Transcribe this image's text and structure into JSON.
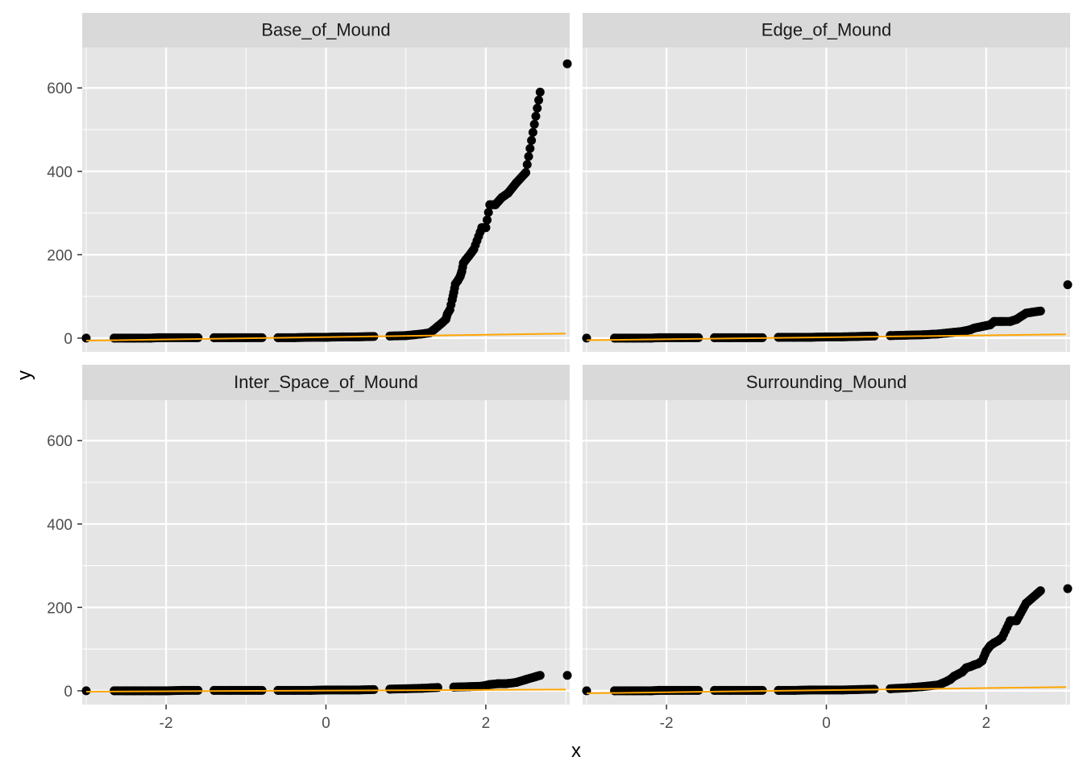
{
  "chart_data": {
    "type": "scatter",
    "xlabel": "x",
    "ylabel": "y",
    "xlim": [
      -3.05,
      3.05
    ],
    "ylim": [
      -33,
      697
    ],
    "x_ticks": [
      -2,
      0,
      2
    ],
    "y_ticks": [
      0,
      200,
      400,
      600
    ],
    "grid": true,
    "colors": {
      "panel_bg": "#e5e5e5",
      "strip_bg": "#d9d9d9",
      "grid": "#ffffff",
      "points": "#000000",
      "line": "#ffa500"
    },
    "panels": [
      {
        "title": "Base_of_Mound",
        "line": [
          [
            -3.0,
            -6
          ],
          [
            3.0,
            11
          ]
        ],
        "points": [
          [
            -3.0,
            0
          ],
          [
            -2.65,
            0
          ],
          [
            -2.5,
            0
          ],
          [
            -2.4,
            0
          ],
          [
            -2.3,
            0
          ],
          [
            -2.2,
            0
          ],
          [
            -2.1,
            1
          ],
          [
            -2.0,
            1
          ],
          [
            -1.8,
            1
          ],
          [
            -1.6,
            1
          ],
          [
            -1.4,
            1
          ],
          [
            -1.2,
            1
          ],
          [
            -1.0,
            1
          ],
          [
            -0.8,
            1
          ],
          [
            -0.6,
            1
          ],
          [
            -0.4,
            1
          ],
          [
            -0.2,
            2
          ],
          [
            0.0,
            2
          ],
          [
            0.2,
            3
          ],
          [
            0.4,
            3
          ],
          [
            0.6,
            4
          ],
          [
            0.8,
            5
          ],
          [
            1.0,
            6
          ],
          [
            1.1,
            8
          ],
          [
            1.2,
            10
          ],
          [
            1.3,
            13
          ],
          [
            1.35,
            20
          ],
          [
            1.4,
            28
          ],
          [
            1.45,
            36
          ],
          [
            1.5,
            45
          ],
          [
            1.52,
            58
          ],
          [
            1.55,
            68
          ],
          [
            1.58,
            92
          ],
          [
            1.6,
            110
          ],
          [
            1.62,
            130
          ],
          [
            1.65,
            138
          ],
          [
            1.68,
            148
          ],
          [
            1.7,
            160
          ],
          [
            1.72,
            180
          ],
          [
            1.75,
            188
          ],
          [
            1.78,
            195
          ],
          [
            1.82,
            205
          ],
          [
            1.85,
            213
          ],
          [
            1.95,
            265
          ],
          [
            2.0,
            265
          ],
          [
            2.05,
            320
          ],
          [
            2.12,
            320
          ],
          [
            2.2,
            337
          ],
          [
            2.28,
            348
          ],
          [
            2.38,
            372
          ],
          [
            2.5,
            397
          ],
          [
            2.68,
            590
          ],
          [
            3.02,
            658
          ]
        ]
      },
      {
        "title": "Edge_of_Mound",
        "line": [
          [
            -3.0,
            -5
          ],
          [
            3.0,
            9
          ]
        ],
        "points": [
          [
            -3.0,
            0
          ],
          [
            -2.65,
            0
          ],
          [
            -2.5,
            0
          ],
          [
            -2.4,
            0
          ],
          [
            -2.3,
            0
          ],
          [
            -2.2,
            0
          ],
          [
            -2.1,
            1
          ],
          [
            -2.0,
            1
          ],
          [
            -1.8,
            1
          ],
          [
            -1.6,
            1
          ],
          [
            -1.4,
            1
          ],
          [
            -1.2,
            1
          ],
          [
            -1.0,
            1
          ],
          [
            -0.8,
            1
          ],
          [
            -0.6,
            2
          ],
          [
            -0.4,
            2
          ],
          [
            -0.2,
            2
          ],
          [
            0.0,
            3
          ],
          [
            0.2,
            3
          ],
          [
            0.4,
            4
          ],
          [
            0.6,
            5
          ],
          [
            0.8,
            6
          ],
          [
            1.0,
            7
          ],
          [
            1.2,
            8
          ],
          [
            1.4,
            10
          ],
          [
            1.5,
            12
          ],
          [
            1.6,
            14
          ],
          [
            1.7,
            16
          ],
          [
            1.8,
            20
          ],
          [
            1.85,
            24
          ],
          [
            1.9,
            26
          ],
          [
            1.95,
            28
          ],
          [
            2.0,
            30
          ],
          [
            2.05,
            32
          ],
          [
            2.1,
            40
          ],
          [
            2.2,
            40
          ],
          [
            2.3,
            40
          ],
          [
            2.38,
            45
          ],
          [
            2.5,
            60
          ],
          [
            2.68,
            65
          ],
          [
            3.02,
            128
          ]
        ]
      },
      {
        "title": "Inter_Space_of_Mound",
        "line": [
          [
            -3.0,
            -2
          ],
          [
            3.0,
            3
          ]
        ],
        "points": [
          [
            -3.0,
            0
          ],
          [
            -2.65,
            0
          ],
          [
            -2.5,
            0
          ],
          [
            -2.4,
            0
          ],
          [
            -2.3,
            0
          ],
          [
            -2.2,
            0
          ],
          [
            -2.1,
            0
          ],
          [
            -2.0,
            0
          ],
          [
            -1.8,
            1
          ],
          [
            -1.6,
            1
          ],
          [
            -1.4,
            1
          ],
          [
            -1.2,
            1
          ],
          [
            -1.0,
            1
          ],
          [
            -0.8,
            1
          ],
          [
            -0.6,
            1
          ],
          [
            -0.4,
            1
          ],
          [
            -0.2,
            1
          ],
          [
            0.0,
            2
          ],
          [
            0.2,
            2
          ],
          [
            0.4,
            2
          ],
          [
            0.6,
            3
          ],
          [
            0.8,
            4
          ],
          [
            1.0,
            5
          ],
          [
            1.2,
            6
          ],
          [
            1.4,
            8
          ],
          [
            1.6,
            9
          ],
          [
            1.8,
            10
          ],
          [
            1.95,
            11
          ],
          [
            2.05,
            15
          ],
          [
            2.15,
            17
          ],
          [
            2.25,
            17
          ],
          [
            2.38,
            20
          ],
          [
            2.5,
            27
          ],
          [
            2.68,
            37
          ],
          [
            3.02,
            37
          ]
        ]
      },
      {
        "title": "Surrounding_Mound",
        "line": [
          [
            -3.0,
            -6
          ],
          [
            3.0,
            9
          ]
        ],
        "points": [
          [
            -3.0,
            0
          ],
          [
            -2.65,
            0
          ],
          [
            -2.5,
            0
          ],
          [
            -2.4,
            0
          ],
          [
            -2.3,
            0
          ],
          [
            -2.2,
            0
          ],
          [
            -2.1,
            1
          ],
          [
            -2.0,
            1
          ],
          [
            -1.8,
            1
          ],
          [
            -1.6,
            1
          ],
          [
            -1.4,
            1
          ],
          [
            -1.2,
            1
          ],
          [
            -1.0,
            1
          ],
          [
            -0.8,
            1
          ],
          [
            -0.6,
            1
          ],
          [
            -0.4,
            1
          ],
          [
            -0.2,
            2
          ],
          [
            0.0,
            2
          ],
          [
            0.2,
            2
          ],
          [
            0.4,
            3
          ],
          [
            0.6,
            4
          ],
          [
            0.8,
            5
          ],
          [
            1.0,
            7
          ],
          [
            1.2,
            10
          ],
          [
            1.4,
            14
          ],
          [
            1.45,
            18
          ],
          [
            1.5,
            22
          ],
          [
            1.55,
            27
          ],
          [
            1.6,
            35
          ],
          [
            1.65,
            40
          ],
          [
            1.7,
            45
          ],
          [
            1.75,
            55
          ],
          [
            1.8,
            58
          ],
          [
            1.85,
            62
          ],
          [
            1.9,
            65
          ],
          [
            1.95,
            72
          ],
          [
            2.0,
            95
          ],
          [
            2.05,
            108
          ],
          [
            2.1,
            115
          ],
          [
            2.15,
            120
          ],
          [
            2.2,
            128
          ],
          [
            2.3,
            168
          ],
          [
            2.38,
            168
          ],
          [
            2.5,
            210
          ],
          [
            2.68,
            240
          ],
          [
            3.02,
            245
          ]
        ]
      }
    ]
  }
}
